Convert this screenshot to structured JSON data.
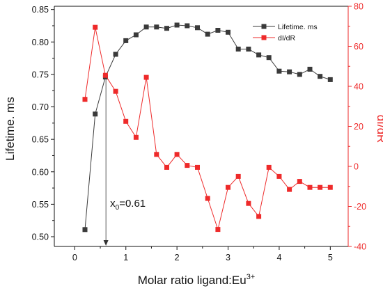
{
  "chart_data": {
    "type": "line",
    "xlabel_main": "Molar ratio ligand:Eu",
    "xlabel_sup": "3+",
    "ylabel_left": "Lifetime. ms",
    "ylabel_right": "dI/dR",
    "xlim": [
      -0.4,
      5.35
    ],
    "ylim_left": [
      0.485,
      0.855
    ],
    "ylim_right": [
      -40,
      80
    ],
    "x_ticks": [
      0,
      1,
      2,
      3,
      4,
      5
    ],
    "y_left_ticks": [
      0.5,
      0.55,
      0.6,
      0.65,
      0.7,
      0.75,
      0.8,
      0.85
    ],
    "y_right_ticks": [
      -40,
      -20,
      0,
      20,
      40,
      60,
      80
    ],
    "grid": false,
    "legend_position": "top-right",
    "colors": {
      "lifetime": "#3a3a3a",
      "didr": "#ee2a2a"
    },
    "series": [
      {
        "name": "Lifetime. ms",
        "axis": "left",
        "x": [
          0.2,
          0.4,
          0.6,
          0.8,
          1.0,
          1.2,
          1.4,
          1.6,
          1.8,
          2.0,
          2.2,
          2.4,
          2.6,
          2.8,
          3.0,
          3.2,
          3.4,
          3.6,
          3.8,
          4.0,
          4.2,
          4.4,
          4.6,
          4.8,
          5.0
        ],
        "values": [
          0.511,
          0.689,
          0.746,
          0.781,
          0.802,
          0.811,
          0.823,
          0.823,
          0.821,
          0.826,
          0.825,
          0.822,
          0.812,
          0.818,
          0.815,
          0.789,
          0.789,
          0.78,
          0.776,
          0.755,
          0.754,
          0.75,
          0.758,
          0.747,
          0.742
        ]
      },
      {
        "name": "dI/dR",
        "axis": "right",
        "x": [
          0.2,
          0.4,
          0.6,
          0.8,
          1.0,
          1.2,
          1.4,
          1.6,
          1.8,
          2.0,
          2.2,
          2.4,
          2.6,
          2.8,
          3.0,
          3.2,
          3.4,
          3.6,
          3.8,
          4.0,
          4.2,
          4.4,
          4.6,
          4.8,
          5.0
        ],
        "values": [
          33.5,
          69.5,
          45.5,
          37.5,
          22.5,
          14.5,
          44.5,
          6.0,
          -0.5,
          6.0,
          0.5,
          -0.5,
          -16.0,
          -31.5,
          -10.5,
          -5.0,
          -18.5,
          -25.0,
          -0.5,
          -5.0,
          -11.5,
          -7.5,
          -10.5,
          -10.5,
          -10.5
        ]
      }
    ],
    "annotation": {
      "text_main": "x",
      "text_sub": "0",
      "text_rest": "=0.61",
      "x_value": 0.61
    }
  }
}
